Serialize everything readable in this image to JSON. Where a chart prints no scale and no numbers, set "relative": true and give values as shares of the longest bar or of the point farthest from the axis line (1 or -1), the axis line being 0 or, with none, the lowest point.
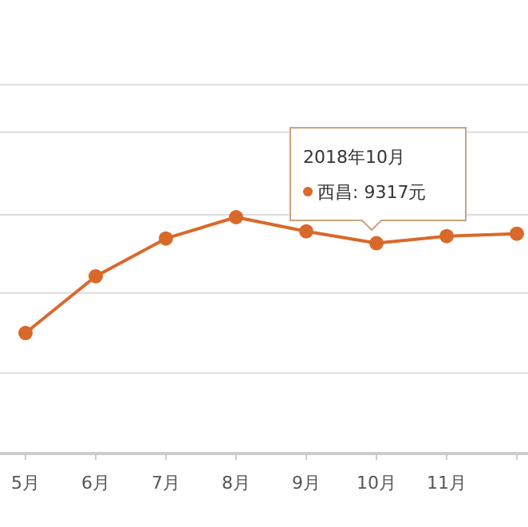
{
  "chart_data": {
    "type": "line",
    "relative": true,
    "categories": [
      "5月",
      "6月",
      "7月",
      "8月",
      "9月",
      "10月",
      "11月",
      null
    ],
    "series": [
      {
        "color": "#d9692a",
        "values": [
          0.51,
          0.75,
          0.91,
          1,
          0.94,
          0.89,
          0.92,
          0.93
        ]
      }
    ],
    "marker": "circle",
    "line_style": "solid",
    "ref_lines": [
      {
        "axis": "y",
        "value": 0.34,
        "color": "#dddddd"
      },
      {
        "axis": "y",
        "value": 0.68,
        "color": "#dddddd"
      },
      {
        "axis": "y",
        "value": 1.01,
        "color": "#dddddd"
      },
      {
        "axis": "y",
        "value": 1.36,
        "color": "#dddddd"
      },
      {
        "axis": "y",
        "value": 1.56,
        "color": "#dddddd"
      }
    ],
    "annotations": [
      "2018年10月",
      "西昌:  9317元"
    ]
  }
}
